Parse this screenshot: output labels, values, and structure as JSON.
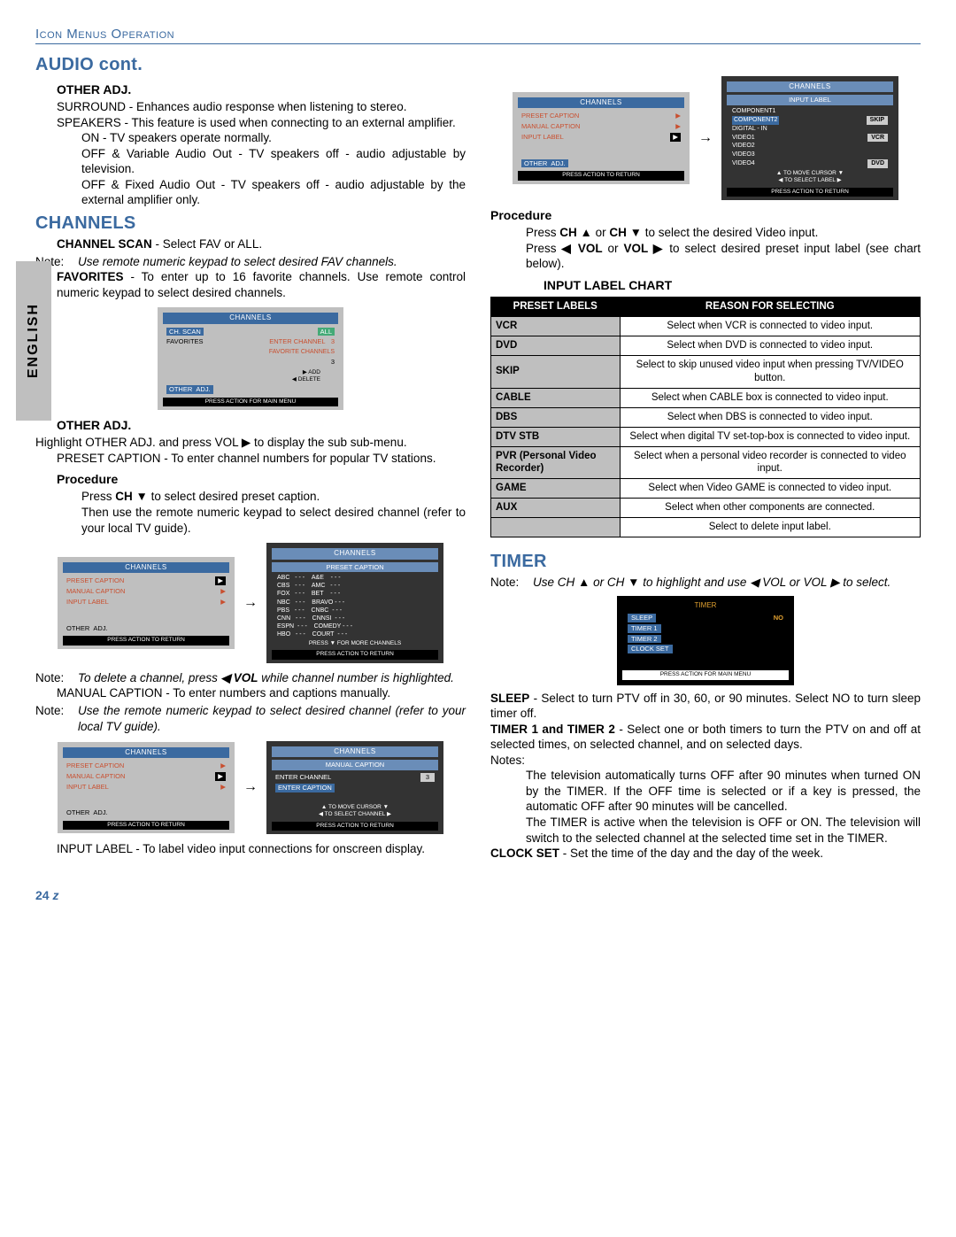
{
  "language_tab": "ENGLISH",
  "header": "Icon Menus Operation",
  "page_number": "24",
  "page_suffix": "z",
  "triangles": {
    "up": "▲",
    "down": "▼",
    "left": "◀",
    "right": "▶"
  },
  "left": {
    "h1a": "AUDIO cont.",
    "other_adj": "OTHER ADJ.",
    "surround": "SURROUND - Enhances audio response when listening to stereo.",
    "speakers": "SPEAKERS - This feature is used when connecting to an external amplifier.",
    "sp_on": "ON - TV speakers operate normally.",
    "sp_off_var": "OFF & Variable Audio Out - TV speakers off - audio adjustable by television.",
    "sp_off_fix": "OFF & Fixed Audio Out - TV speakers off - audio adjustable by the external amplifier only.",
    "h1b": "CHANNELS",
    "chscan": "CHANNEL SCAN - Select FAV or ALL.",
    "chscan_bold": "CHANNEL SCAN",
    "note1_label": "Note:",
    "note1": "Use remote numeric keypad to select desired FAV channels.",
    "favorites": "FAVORITES - To enter up to 16 favorite channels. Use remote control numeric keypad to select desired channels.",
    "fav_bold": "FAVORITES",
    "osd1": {
      "title": "CHANNELS",
      "rows": [
        [
          "CH. SCAN",
          "ALL"
        ],
        [
          "FAVORITES",
          "ENTER CHANNEL    3"
        ],
        [
          "",
          "FAVORITE CHANNELS"
        ],
        [
          "",
          "3"
        ]
      ],
      "hints": [
        "▶ ADD",
        "◀ DELETE"
      ],
      "other": "OTHER  ADJ.",
      "foot": "PRESS ACTION FOR MAIN MENU"
    },
    "other_adj2": "OTHER ADJ.",
    "other_adj2_body": "Highlight OTHER ADJ. and press VOL ▶ to display the sub sub-menu.",
    "preset_caption": "PRESET CAPTION - To enter channel numbers for popular TV stations.",
    "procedure": "Procedure",
    "proc1": "Press CH ▼ to select desired preset caption.",
    "proc2": "Then use the remote numeric keypad to select desired channel (refer to your local TV guide).",
    "osd2a": {
      "title": "CHANNELS",
      "rows": [
        "PRESET CAPTION",
        "MANUAL CAPTION",
        "INPUT LABEL"
      ],
      "other": "OTHER  ADJ.",
      "foot": "PRESS ACTION TO RETURN"
    },
    "osd2b": {
      "title": "CHANNELS",
      "sub": "PRESET CAPTION",
      "list": [
        [
          "ABC",
          "- - -",
          "A&E",
          "- - -"
        ],
        [
          "CBS",
          "- - -",
          "AMC",
          "- - -"
        ],
        [
          "FOX",
          "- - -",
          "BET",
          "- - -"
        ],
        [
          "NBC",
          "- - -",
          "BRAVO",
          "- - -"
        ],
        [
          "PBS",
          "- - -",
          "CNBC",
          "- - -"
        ],
        [
          "CNN",
          "- - -",
          "CNNSI",
          "- - -"
        ],
        [
          "ESPN",
          "- - -",
          "COMEDY",
          "- - -"
        ],
        [
          "HBO",
          "- - -",
          "COURT",
          "- - -"
        ]
      ],
      "hint": "PRESS ▼ FOR MORE CHANNELS",
      "foot": "PRESS ACTION TO RETURN"
    },
    "note2_label": "Note:",
    "note2": "To delete a channel, press ◀ VOL while channel number is highlighted.",
    "note2_bold": "◀ VOL",
    "manual_caption": "MANUAL CAPTION - To enter numbers and captions manually.",
    "note3_label": "Note:",
    "note3": "Use the remote numeric keypad to select desired channel (refer to your local TV guide).",
    "osd3a": {
      "title": "CHANNELS",
      "rows": [
        "PRESET CAPTION",
        "MANUAL CAPTION",
        "INPUT LABEL"
      ],
      "other": "OTHER  ADJ.",
      "foot": "PRESS ACTION TO RETURN"
    },
    "osd3b": {
      "title": "CHANNELS",
      "sub": "MANUAL CAPTION",
      "rows": [
        "ENTER CHANNEL           3",
        "ENTER CAPTION"
      ],
      "hints": [
        "▲ TO MOVE CURSOR ▼",
        "◀ TO SELECT CHANNEL ▶"
      ],
      "foot": "PRESS ACTION TO RETURN"
    },
    "input_label": "INPUT LABEL - To label video input connections for onscreen display."
  },
  "right": {
    "osd4a": {
      "title": "CHANNELS",
      "rows": [
        "PRESET CAPTION",
        "MANUAL CAPTION",
        "INPUT LABEL"
      ],
      "other": "OTHER  ADJ.",
      "foot": "PRESS ACTION TO RETURN"
    },
    "osd4b": {
      "title": "CHANNELS",
      "sub": "INPUT LABEL",
      "rows": [
        [
          "COMPONENT1",
          ""
        ],
        [
          "COMPONENT2",
          "SKIP"
        ],
        [
          "DIGITAL - IN",
          ""
        ],
        [
          "VIDEO1",
          "VCR"
        ],
        [
          "VIDEO2",
          ""
        ],
        [
          "VIDEO3",
          ""
        ],
        [
          "VIDEO4",
          "DVD"
        ]
      ],
      "hints": [
        "▲ TO MOVE CURSOR ▼",
        "◀ TO SELECT LABEL ▶"
      ],
      "foot": "PRESS ACTION TO RETURN"
    },
    "procedure": "Procedure",
    "proc1": "Press CH ▲ or CH ▼ to select the desired Video input.",
    "proc2": "Press ◀ VOL or VOL ▶ to select desired preset input label (see chart below).",
    "chart_title": "INPUT LABEL CHART",
    "chart": {
      "head": [
        "PRESET LABELS",
        "REASON FOR SELECTING"
      ],
      "rows": [
        [
          "VCR",
          "Select when VCR is connected to video input."
        ],
        [
          "DVD",
          "Select when DVD is connected to video input."
        ],
        [
          "SKIP",
          "Select to skip unused video input when pressing TV/VIDEO button."
        ],
        [
          "CABLE",
          "Select when CABLE box is connected to video input."
        ],
        [
          "DBS",
          "Select when DBS is connected to video input."
        ],
        [
          "DTV STB",
          "Select when digital TV set-top-box is connected to video input."
        ],
        [
          "PVR  (Personal Video Recorder)",
          "Select when a personal video recorder is connected to video input."
        ],
        [
          "GAME",
          "Select when Video GAME is connected to video input."
        ],
        [
          "AUX",
          "Select when other components are connected."
        ],
        [
          "",
          "Select to delete input label."
        ]
      ]
    },
    "h1": "TIMER",
    "note_label": "Note:",
    "note": "Use CH ▲ or CH ▼ to highlight and use ◀ VOL or VOL ▶ to select.",
    "timer_osd": {
      "title": "TIMER",
      "rows": [
        [
          "SLEEP",
          "NO"
        ],
        [
          "TIMER 1",
          ""
        ],
        [
          "TIMER 2",
          ""
        ],
        [
          "CLOCK SET",
          ""
        ]
      ],
      "foot": "PRESS ACTION FOR MAIN MENU"
    },
    "sleep": "SLEEP - Select to turn PTV off in 30, 60, or 90 minutes. Select NO to turn sleep timer off.",
    "sleep_bold": "SLEEP",
    "timers": "TIMER 1 and TIMER 2 - Select one or both timers to turn the PTV on and off at selected times, on selected channel, and on selected days.",
    "timers_bold": "TIMER 1 and TIMER 2",
    "notes_label": "Notes:",
    "n1": "The television automatically turns OFF after 90 minutes when turned ON by the TIMER. If the OFF time is selected or if a key is pressed, the automatic OFF after 90 minutes will be cancelled.",
    "n2": "The TIMER is active when the television is OFF or ON. The television will switch to the selected channel at the selected time set in the TIMER.",
    "clock": "CLOCK SET - Set the time of the day and the day of the week.",
    "clock_bold": "CLOCK SET"
  }
}
